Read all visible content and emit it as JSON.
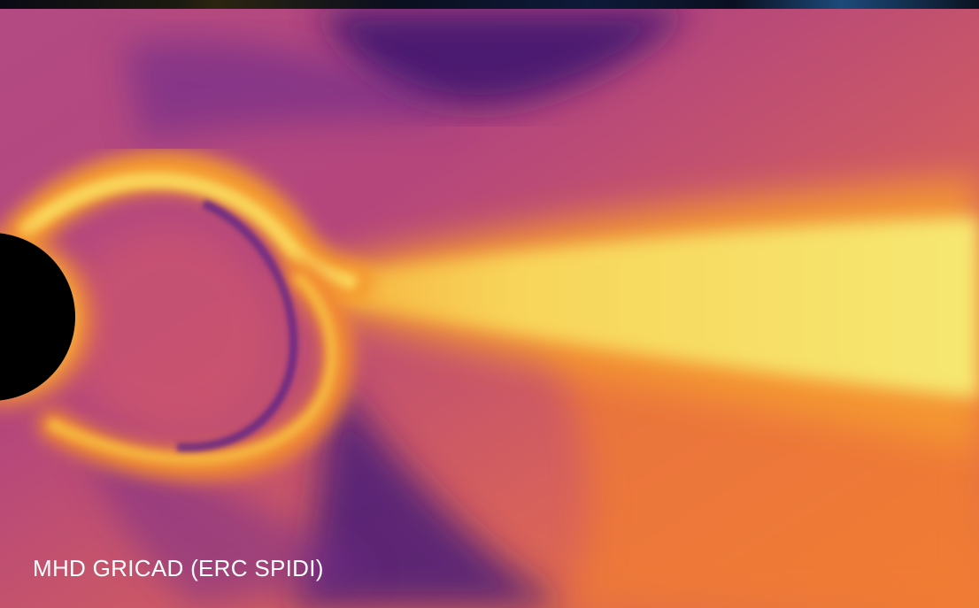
{
  "image": {
    "caption": "MHD GRICAD (ERC SPIDI)"
  },
  "colors": {
    "background_magenta": "#b8457a",
    "deep_purple": "#4a1a78",
    "orange": "#f07a2c",
    "yellow": "#f7e26a",
    "star_disk": "#000000",
    "caption_text": "#ffffff"
  }
}
